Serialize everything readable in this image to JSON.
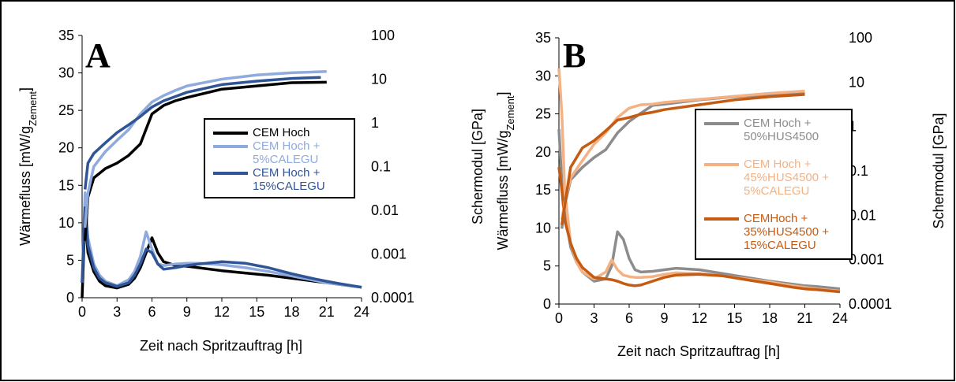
{
  "chart_data": [
    {
      "type": "line",
      "panel": "A",
      "xlabel": "Zeit nach Spritzauftrag [h]",
      "ylabel": [
        "Wärmefluss [mW/g",
        "Zement",
        "]"
      ],
      "y2label": "Schermodul [GPa]",
      "xlim": [
        0,
        24
      ],
      "xticks": [
        0,
        3,
        6,
        9,
        12,
        15,
        18,
        21,
        24
      ],
      "ylim": [
        0,
        35
      ],
      "yticks": [
        0,
        5,
        10,
        15,
        20,
        25,
        30,
        35
      ],
      "y2lim": [
        0.0001,
        100
      ],
      "y2ticks": [
        0.0001,
        0.001,
        0.01,
        0.1,
        1,
        10,
        100
      ],
      "y2log": true,
      "x": [
        0,
        0.25,
        0.5,
        1,
        1.5,
        2,
        3,
        4,
        4.5,
        5,
        5.5,
        6,
        6.5,
        7,
        8,
        9,
        10,
        12,
        14,
        16,
        18,
        20,
        21,
        22,
        24
      ],
      "series": [
        {
          "name": "CEM Hoch",
          "color": "#000000",
          "values": [
            0,
            11,
            6,
            3.5,
            2.2,
            1.6,
            1.3,
            1.8,
            2.6,
            4,
            6,
            8,
            6,
            4.8,
            4.3,
            4.2,
            4,
            3.6,
            3.3,
            3,
            2.6,
            2.2,
            2,
            1.8,
            1.4
          ]
        },
        {
          "name": "CEM Hoch + 5%CALEGU",
          "color": "#8faadc",
          "values": [
            2,
            14,
            8,
            4.5,
            3,
            2.2,
            1.6,
            2.4,
            3.5,
            5.5,
            8.8,
            6.5,
            4.5,
            4.3,
            4.5,
            4.6,
            4.6,
            4.4,
            4,
            3.5,
            2.9,
            2.3,
            2,
            1.8,
            1.4
          ]
        },
        {
          "name": "CEM Hoch + 15%CALEGU",
          "color": "#2f5597",
          "values": [
            2,
            12,
            7,
            4,
            2.6,
            2,
            1.5,
            2,
            3,
            4.5,
            6.5,
            6,
            4.5,
            3.8,
            4,
            4.3,
            4.5,
            4.8,
            4.6,
            4,
            3.2,
            2.5,
            2.2,
            1.9,
            1.4
          ]
        },
        {
          "color": "#000000",
          "axis": "y2",
          "x": [
            0.25,
            0.5,
            1,
            2,
            3,
            4,
            5,
            6,
            7,
            8,
            9,
            12,
            15,
            18,
            21
          ],
          "values": [
            0.002,
            0.02,
            0.055,
            0.09,
            0.12,
            0.18,
            0.33,
            1.6,
            2.5,
            3.2,
            3.8,
            5.9,
            7,
            8.3,
            8.5
          ]
        },
        {
          "color": "#8faadc",
          "axis": "y2",
          "x": [
            0.25,
            0.5,
            1,
            2,
            3,
            4,
            5,
            6,
            7,
            8,
            9,
            12,
            15,
            18,
            21
          ],
          "values": [
            0.004,
            0.025,
            0.1,
            0.22,
            0.4,
            0.7,
            1.6,
            3,
            4.2,
            5.5,
            7,
            10,
            12.4,
            14,
            15
          ]
        },
        {
          "color": "#2f5597",
          "axis": "y2",
          "x": [
            0.25,
            0.5,
            1,
            2,
            3,
            4,
            5,
            6,
            7,
            8,
            9,
            12,
            15,
            18,
            20.5
          ],
          "values": [
            0.03,
            0.12,
            0.2,
            0.35,
            0.6,
            0.9,
            1.4,
            2.3,
            3.2,
            4,
            5,
            7.5,
            9,
            10.4,
            11
          ]
        }
      ]
    },
    {
      "type": "line",
      "panel": "B",
      "xlabel": "Zeit nach Spritzauftrag [h]",
      "ylabel": [
        "Wärmefluss [mW/g",
        "Zement",
        "]"
      ],
      "y2label": "Schermodul [GPa]",
      "xlim": [
        0,
        24
      ],
      "xticks": [
        0,
        3,
        6,
        9,
        12,
        15,
        18,
        21,
        24
      ],
      "ylim": [
        0,
        35
      ],
      "yticks": [
        0,
        5,
        10,
        15,
        20,
        25,
        30,
        35
      ],
      "y2lim": [
        0.0001,
        100
      ],
      "y2ticks": [
        0.0001,
        0.001,
        0.01,
        0.1,
        1,
        10,
        100
      ],
      "y2log": true,
      "x": [
        0,
        0.25,
        0.5,
        1,
        1.5,
        2,
        3,
        4,
        4.5,
        5,
        5.5,
        6,
        6.5,
        7,
        8,
        9,
        10,
        12,
        14,
        16,
        18,
        20,
        21,
        22,
        24
      ],
      "series": [
        {
          "name": "CEM Hoch + 50%HUS4500",
          "color": "#8c8c8c",
          "values": [
            23,
            16,
            12,
            7.5,
            5.5,
            4.2,
            3,
            3.3,
            5,
            9.5,
            8.5,
            6,
            4.5,
            4.2,
            4.3,
            4.5,
            4.7,
            4.5,
            4,
            3.5,
            3,
            2.6,
            2.4,
            2.3,
            2
          ]
        },
        {
          "name": "CEM Hoch + 45%HUS4500 + 5%CALEGU",
          "color": "#f4b183",
          "values": [
            31,
            25,
            15,
            8,
            5.5,
            4.2,
            3.3,
            4.2,
            5.8,
            4.5,
            3.8,
            3.6,
            3.5,
            3.5,
            3.6,
            3.9,
            4.1,
            4,
            3.7,
            3.3,
            2.9,
            2.4,
            2.2,
            2,
            1.7
          ]
        },
        {
          "name": "CEMHoch + 35%HUS4500 + 15%CALEGU",
          "color": "#c55a11",
          "values": [
            18,
            15,
            11,
            8,
            6,
            4.8,
            3.5,
            3.3,
            3.2,
            3,
            2.7,
            2.5,
            2.4,
            2.5,
            3,
            3.5,
            3.8,
            3.9,
            3.7,
            3.2,
            2.7,
            2.2,
            2,
            1.9,
            1.6
          ]
        },
        {
          "color": "#8c8c8c",
          "axis": "y2",
          "x": [
            0.25,
            0.5,
            1,
            2,
            3,
            4,
            5,
            6,
            7,
            8,
            9,
            12,
            15,
            18,
            21
          ],
          "values": [
            0.005,
            0.017,
            0.063,
            0.12,
            0.2,
            0.3,
            0.72,
            1.3,
            2,
            3,
            3.2,
            4,
            4.7,
            5.3,
            6
          ]
        },
        {
          "color": "#f4b183",
          "axis": "y2",
          "x": [
            0.25,
            0.5,
            1,
            2,
            3,
            4,
            5,
            6,
            7,
            8,
            9,
            12,
            15,
            18,
            21
          ],
          "values": [
            0.008,
            0.02,
            0.07,
            0.17,
            0.4,
            0.72,
            1.6,
            2.6,
            3.1,
            3.2,
            3.5,
            4.1,
            4.8,
            5.6,
            6.3
          ]
        },
        {
          "color": "#c55a11",
          "axis": "y2",
          "x": [
            0.25,
            0.5,
            1,
            2,
            3,
            4,
            5,
            6,
            7,
            8,
            9,
            12,
            15,
            18,
            21
          ],
          "values": [
            0.006,
            0.017,
            0.12,
            0.33,
            0.48,
            0.8,
            1.4,
            1.6,
            1.9,
            2.1,
            2.4,
            3.1,
            4,
            4.7,
            5.3
          ]
        }
      ]
    }
  ]
}
